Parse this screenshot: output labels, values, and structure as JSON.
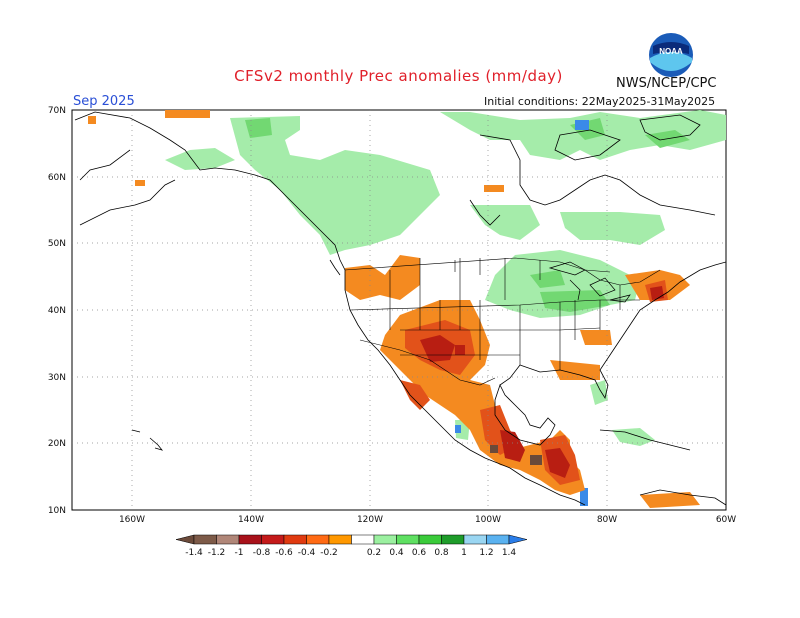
{
  "title": "CFSv2 monthly Prec anomalies (mm/day)",
  "agency": "NWS/NCEP/CPC",
  "month_label": "Sep 2025",
  "init_conditions": "Initial conditions: 22May2025-31May2025",
  "logo": {
    "icon": "noaa-logo-icon",
    "text": "NOAA"
  },
  "axes": {
    "lat_labels": [
      "70N",
      "60N",
      "50N",
      "40N",
      "30N",
      "20N",
      "10N"
    ],
    "lon_labels": [
      "160W",
      "140W",
      "120W",
      "100W",
      "80W",
      "60W"
    ]
  },
  "colorbar": {
    "labels": [
      "-1.4",
      "-1.2",
      "-1",
      "-0.8",
      "-0.6",
      "-0.4",
      "-0.2",
      "0.2",
      "0.4",
      "0.6",
      "0.8",
      "1",
      "1.2",
      "1.4"
    ],
    "colors": [
      "#6b4a3a",
      "#7d5a48",
      "#b08678",
      "#a8111a",
      "#c41a1a",
      "#e03a10",
      "#ff6a14",
      "#ff9800",
      "#ffffff",
      "#9bf0a0",
      "#5fe062",
      "#3acb3a",
      "#1e9c2a",
      "#9ad6f2",
      "#5ab2f0",
      "#2a7de8"
    ]
  },
  "map_layers": {
    "dry_colors": {
      "strong": "#b81e12",
      "medium": "#e2521a",
      "light": "#f48a20",
      "pale": "#f7a34a",
      "brown": "#6b4a3a"
    },
    "wet_colors": {
      "light": "#a5ecaa",
      "medium": "#72d872",
      "strong": "#2db33a",
      "blue": "#3a8ae8"
    }
  }
}
